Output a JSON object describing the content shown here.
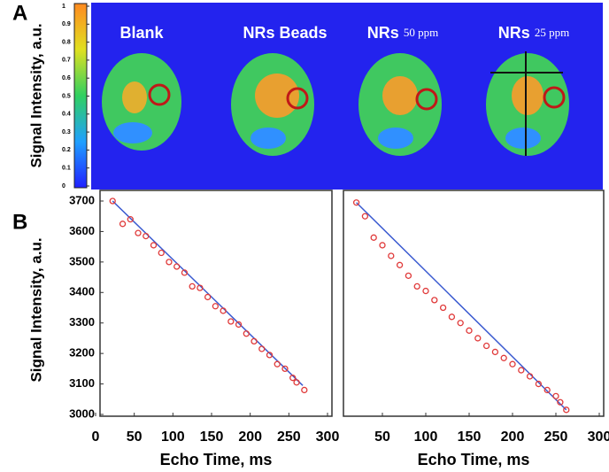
{
  "panel_labels": [
    "A",
    "B"
  ],
  "chart_data": [
    {
      "type": "image-grid",
      "ylabel": "Signal Intensity, a.u.",
      "ylim": [
        0,
        1
      ],
      "yticks": [
        0,
        0.1,
        0.2,
        0.3,
        0.4,
        0.5,
        0.6,
        0.7,
        0.8,
        0.9,
        1
      ],
      "image_titles": [
        [
          "Blank"
        ],
        [
          "NRs Beads"
        ],
        [
          "NRs",
          "50 ppm"
        ],
        [
          "NRs",
          "25 ppm"
        ]
      ]
    },
    {
      "type": "scatter",
      "ylabel": "Signal Intensity, a.u.",
      "xlabel": "Echo Time, ms",
      "xlim": [
        0,
        300
      ],
      "xticks": [
        0,
        50,
        100,
        150,
        200,
        250,
        300
      ],
      "ylim": [
        3000,
        3700
      ],
      "yticks": [
        3000,
        3100,
        3200,
        3300,
        3400,
        3500,
        3600,
        3700
      ],
      "marker_color": "#e03a3a",
      "line_color": "#3a5ad0",
      "x": [
        22,
        35,
        45,
        55,
        65,
        75,
        85,
        95,
        105,
        115,
        125,
        135,
        145,
        155,
        165,
        175,
        185,
        195,
        205,
        215,
        225,
        235,
        245,
        255,
        260,
        270
      ],
      "values": [
        3700,
        3625,
        3640,
        3595,
        3585,
        3555,
        3530,
        3500,
        3485,
        3465,
        3420,
        3415,
        3385,
        3355,
        3340,
        3305,
        3295,
        3265,
        3240,
        3215,
        3195,
        3165,
        3150,
        3120,
        3105,
        3080
      ],
      "fit_line": {
        "x": [
          22,
          268
        ],
        "y": [
          3700,
          3095
        ]
      }
    },
    {
      "type": "scatter",
      "xlabel": "Echo Time, ms",
      "xlim": [
        0,
        300
      ],
      "xticks": [
        50,
        100,
        150,
        200,
        250,
        300
      ],
      "ylim": [
        3000,
        3700
      ],
      "marker_color": "#e03a3a",
      "line_color": "#3a5ad0",
      "x": [
        20,
        30,
        40,
        50,
        60,
        70,
        80,
        90,
        100,
        110,
        120,
        130,
        140,
        150,
        160,
        170,
        180,
        190,
        200,
        210,
        220,
        230,
        240,
        250,
        255,
        262
      ],
      "values": [
        3695,
        3650,
        3580,
        3555,
        3520,
        3490,
        3455,
        3420,
        3405,
        3375,
        3350,
        3320,
        3300,
        3275,
        3250,
        3225,
        3205,
        3185,
        3165,
        3145,
        3125,
        3100,
        3080,
        3060,
        3040,
        3015
      ],
      "fit_line": {
        "x": [
          20,
          262
        ],
        "y": [
          3695,
          3015
        ]
      }
    }
  ]
}
